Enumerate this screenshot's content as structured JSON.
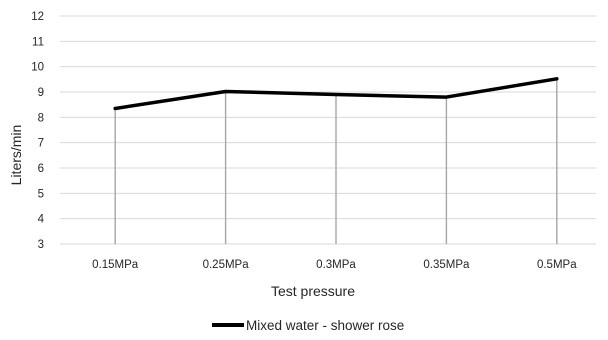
{
  "chart_data": {
    "type": "line",
    "categories": [
      "0.15MPa",
      "0.25MPa",
      "0.3MPa",
      "0.35MPa",
      "0.5MPa"
    ],
    "series": [
      {
        "name": "Mixed water - shower rose",
        "values": [
          8.35,
          9.02,
          8.9,
          8.8,
          9.52
        ]
      }
    ],
    "xlabel": "Test pressure",
    "ylabel": "Liters/min",
    "ylim": [
      3,
      12
    ],
    "yticks": [
      "3",
      "4",
      "5",
      "6",
      "7",
      "8",
      "9",
      "10",
      "11",
      "12"
    ],
    "grid": "horizontal",
    "drop_lines": true,
    "legend_position": "bottom",
    "colors": {
      "series": "#000000",
      "grid": "#d9d9d9",
      "drop_lines": "#a6a6a6",
      "text": "#262626"
    }
  }
}
